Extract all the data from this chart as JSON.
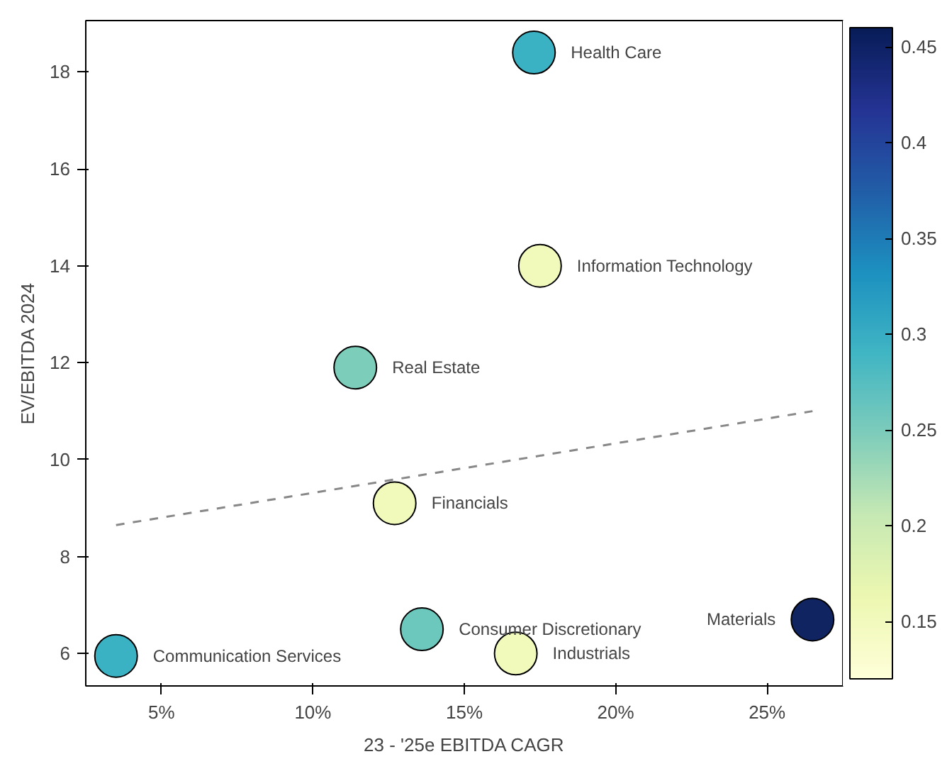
{
  "chart_data": {
    "type": "scatter",
    "xlabel": "23 - '25e EBITDA CAGR",
    "ylabel": "EV/EBITDA 2024",
    "xlim": [
      2.5,
      27.5
    ],
    "ylim": [
      5.33,
      19.06
    ],
    "xticks": [
      {
        "value": 5,
        "label": "5%"
      },
      {
        "value": 10,
        "label": "10%"
      },
      {
        "value": 15,
        "label": "15%"
      },
      {
        "value": 20,
        "label": "20%"
      },
      {
        "value": 25,
        "label": "25%"
      }
    ],
    "yticks": [
      6,
      8,
      10,
      12,
      14,
      16,
      18
    ],
    "clim": [
      0.12,
      0.46
    ],
    "cticks": [
      0.15,
      0.2,
      0.25,
      0.3,
      0.35,
      0.4,
      0.45
    ],
    "grid": false,
    "series": [
      {
        "marker": "circle",
        "x": [
          17.3,
          17.5,
          11.4,
          12.7,
          13.6,
          16.7,
          26.5,
          3.5
        ],
        "values": [
          18.4,
          14.0,
          11.9,
          9.1,
          6.5,
          6.0,
          6.7,
          5.95
        ],
        "colors": [
          "#3ab2c4",
          "#f1f9bb",
          "#7dcdbb",
          "#f1f9bb",
          "#6cc7bd",
          "#f1f9bb",
          "#0f2461",
          "#3ab2c4"
        ]
      },
      {
        "type": "line",
        "x": [
          3.5,
          26.5
        ],
        "values": [
          8.65,
          11.0
        ],
        "color": "#888888",
        "line_style": "dashed"
      }
    ],
    "annotations": [
      {
        "text": "Health Care",
        "x": 17.3,
        "y": 18.4
      },
      {
        "text": "Information Technology",
        "x": 17.5,
        "y": 14.0
      },
      {
        "text": "Real Estate",
        "x": 11.4,
        "y": 11.9
      },
      {
        "text": "Financials",
        "x": 12.7,
        "y": 9.1
      },
      {
        "text": "Consumer Discretionary",
        "x": 13.6,
        "y": 6.5
      },
      {
        "text": "Industrials",
        "x": 16.7,
        "y": 6.0
      },
      {
        "text": "Materials",
        "x": 26.5,
        "y": 6.7
      },
      {
        "text": "Communication Services",
        "x": 3.5,
        "y": 5.95
      }
    ]
  }
}
